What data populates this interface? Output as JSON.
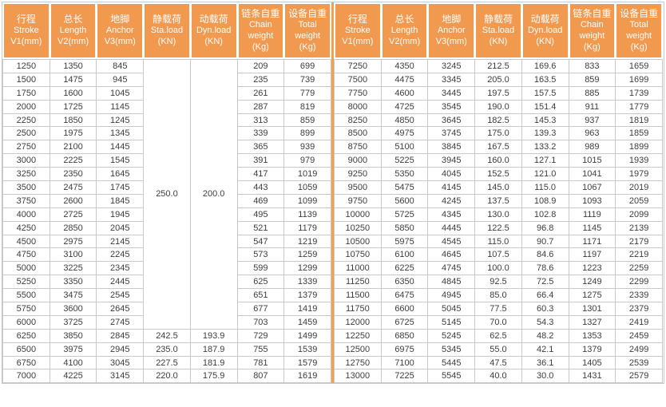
{
  "theme": {
    "header_bg": "#f0994f",
    "header_text": "#ffffff",
    "body_text": "#3d3d3d",
    "grid_border": "#c9c9c9",
    "divider_orange": "#f2a04e"
  },
  "columns": [
    {
      "zh": "行程",
      "en": "Stroke",
      "unit": "V1(mm)"
    },
    {
      "zh": "总长",
      "en": "Length",
      "unit": "V2(mm)"
    },
    {
      "zh": "地脚",
      "en": "Anchor",
      "unit": "V3(mm)"
    },
    {
      "zh": "静载荷",
      "en": "Sta.load",
      "unit": "(KN)"
    },
    {
      "zh": "动载荷",
      "en": "Dyn.load",
      "unit": "(KN)"
    },
    {
      "zh": "链条自重",
      "en": "Chain weight",
      "unit": "(Kg)"
    },
    {
      "zh": "设备自重",
      "en": "Total weight",
      "unit": "(Kg)"
    }
  ],
  "tables": [
    {
      "name": "left",
      "merged_cells": [
        {
          "row": 0,
          "col": 3,
          "rowspan": 20,
          "value": "250.0"
        },
        {
          "row": 0,
          "col": 4,
          "rowspan": 20,
          "value": "200.0"
        }
      ],
      "rows": [
        [
          "1250",
          "1350",
          "845",
          "209",
          "699"
        ],
        [
          "1500",
          "1475",
          "945",
          "235",
          "739"
        ],
        [
          "1750",
          "1600",
          "1045",
          "261",
          "779"
        ],
        [
          "2000",
          "1725",
          "1145",
          "287",
          "819"
        ],
        [
          "2250",
          "1850",
          "1245",
          "313",
          "859"
        ],
        [
          "2500",
          "1975",
          "1345",
          "339",
          "899"
        ],
        [
          "2750",
          "2100",
          "1445",
          "365",
          "939"
        ],
        [
          "3000",
          "2225",
          "1545",
          "391",
          "979"
        ],
        [
          "3250",
          "2350",
          "1645",
          "417",
          "1019"
        ],
        [
          "3500",
          "2475",
          "1745",
          "443",
          "1059"
        ],
        [
          "3750",
          "2600",
          "1845",
          "469",
          "1099"
        ],
        [
          "4000",
          "2725",
          "1945",
          "495",
          "1139"
        ],
        [
          "4250",
          "2850",
          "2045",
          "521",
          "1179"
        ],
        [
          "4500",
          "2975",
          "2145",
          "547",
          "1219"
        ],
        [
          "4750",
          "3100",
          "2245",
          "573",
          "1259"
        ],
        [
          "5000",
          "3225",
          "2345",
          "599",
          "1299"
        ],
        [
          "5250",
          "3350",
          "2445",
          "625",
          "1339"
        ],
        [
          "5500",
          "3475",
          "2545",
          "651",
          "1379"
        ],
        [
          "5750",
          "3600",
          "2645",
          "677",
          "1419"
        ],
        [
          "6000",
          "3725",
          "2745",
          "703",
          "1459"
        ],
        [
          "6250",
          "3850",
          "2845",
          "242.5",
          "193.9",
          "729",
          "1499"
        ],
        [
          "6500",
          "3975",
          "2945",
          "235.0",
          "187.9",
          "755",
          "1539"
        ],
        [
          "6750",
          "4100",
          "3045",
          "227.5",
          "181.9",
          "781",
          "1579"
        ],
        [
          "7000",
          "4225",
          "3145",
          "220.0",
          "175.9",
          "807",
          "1619"
        ]
      ]
    },
    {
      "name": "right",
      "merged_cells": [],
      "rows": [
        [
          "7250",
          "4350",
          "3245",
          "212.5",
          "169.6",
          "833",
          "1659"
        ],
        [
          "7500",
          "4475",
          "3345",
          "205.0",
          "163.5",
          "859",
          "1699"
        ],
        [
          "7750",
          "4600",
          "3445",
          "197.5",
          "157.5",
          "885",
          "1739"
        ],
        [
          "8000",
          "4725",
          "3545",
          "190.0",
          "151.4",
          "911",
          "1779"
        ],
        [
          "8250",
          "4850",
          "3645",
          "182.5",
          "145.3",
          "937",
          "1819"
        ],
        [
          "8500",
          "4975",
          "3745",
          "175.0",
          "139.3",
          "963",
          "1859"
        ],
        [
          "8750",
          "5100",
          "3845",
          "167.5",
          "133.2",
          "989",
          "1899"
        ],
        [
          "9000",
          "5225",
          "3945",
          "160.0",
          "127.1",
          "1015",
          "1939"
        ],
        [
          "9250",
          "5350",
          "4045",
          "152.5",
          "121.0",
          "1041",
          "1979"
        ],
        [
          "9500",
          "5475",
          "4145",
          "145.0",
          "115.0",
          "1067",
          "2019"
        ],
        [
          "9750",
          "5600",
          "4245",
          "137.5",
          "108.9",
          "1093",
          "2059"
        ],
        [
          "10000",
          "5725",
          "4345",
          "130.0",
          "102.8",
          "1119",
          "2099"
        ],
        [
          "10250",
          "5850",
          "4445",
          "122.5",
          "96.8",
          "1145",
          "2139"
        ],
        [
          "10500",
          "5975",
          "4545",
          "115.0",
          "90.7",
          "1171",
          "2179"
        ],
        [
          "10750",
          "6100",
          "4645",
          "107.5",
          "84.6",
          "1197",
          "2219"
        ],
        [
          "11000",
          "6225",
          "4745",
          "100.0",
          "78.6",
          "1223",
          "2259"
        ],
        [
          "11250",
          "6350",
          "4845",
          "92.5",
          "72.5",
          "1249",
          "2299"
        ],
        [
          "11500",
          "6475",
          "4945",
          "85.0",
          "66.4",
          "1275",
          "2339"
        ],
        [
          "11750",
          "6600",
          "5045",
          "77.5",
          "60.3",
          "1301",
          "2379"
        ],
        [
          "12000",
          "6725",
          "5145",
          "70.0",
          "54.3",
          "1327",
          "2419"
        ],
        [
          "12250",
          "6850",
          "5245",
          "62.5",
          "48.2",
          "1353",
          "2459"
        ],
        [
          "12500",
          "6975",
          "5345",
          "55.0",
          "42.1",
          "1379",
          "2499"
        ],
        [
          "12750",
          "7100",
          "5445",
          "47.5",
          "36.1",
          "1405",
          "2539"
        ],
        [
          "13000",
          "7225",
          "5545",
          "40.0",
          "30.0",
          "1431",
          "2579"
        ]
      ]
    }
  ]
}
